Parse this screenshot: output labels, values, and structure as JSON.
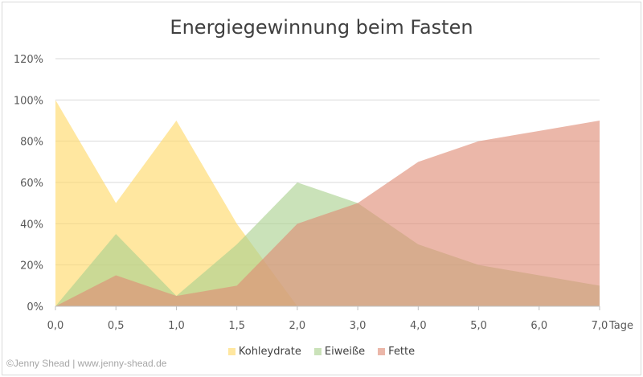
{
  "chart_data": {
    "type": "area",
    "title": "Energiegewinnung beim Fasten",
    "xlabel": "Tage",
    "ylabel": "",
    "categories": [
      "0,0",
      "0,5",
      "1,0",
      "1,5",
      "2,0",
      "3,0",
      "4,0",
      "5,0",
      "6,0",
      "7,0"
    ],
    "yticks": [
      "0%",
      "20%",
      "40%",
      "60%",
      "80%",
      "100%",
      "120%"
    ],
    "ylim": [
      0,
      120
    ],
    "grid": true,
    "legend_position": "bottom",
    "series": [
      {
        "name": "Kohleydrate",
        "color": "#FFD966",
        "values": [
          100,
          50,
          90,
          40,
          0,
          0,
          0,
          0,
          0,
          0
        ]
      },
      {
        "name": "Eiweiße",
        "color": "#A9D18E",
        "values": [
          0,
          35,
          5,
          30,
          60,
          50,
          30,
          20,
          15,
          10
        ]
      },
      {
        "name": "Fette",
        "color": "#DE8B75",
        "values": [
          0,
          15,
          5,
          10,
          40,
          50,
          70,
          80,
          85,
          90
        ]
      }
    ]
  },
  "credit": "©Jenny Shead | www.jenny-shead.de"
}
